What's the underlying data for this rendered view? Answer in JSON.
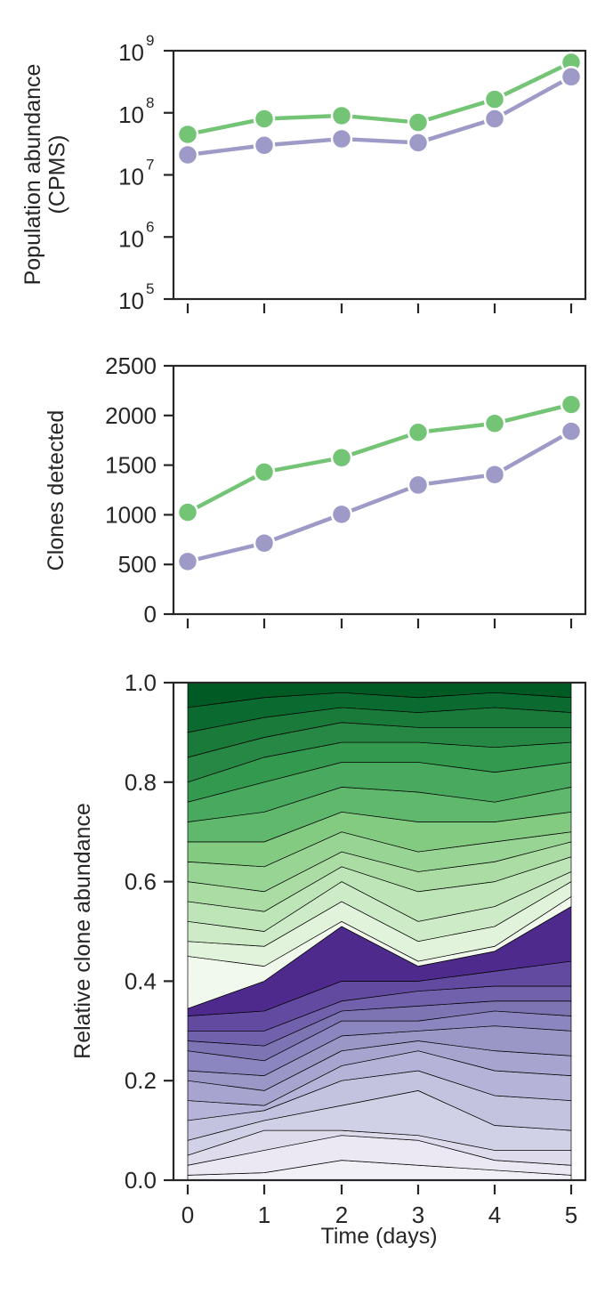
{
  "chart_data": [
    {
      "type": "line",
      "ylabel": "Population abundance\n(CPMS)",
      "yscale": "log",
      "ylim": [
        100000,
        1000000000
      ],
      "yticks": [
        {
          "base": "10",
          "exp": "5"
        },
        {
          "base": "10",
          "exp": "6"
        },
        {
          "base": "10",
          "exp": "7"
        },
        {
          "base": "10",
          "exp": "8"
        },
        {
          "base": "10",
          "exp": "9"
        }
      ],
      "x": [
        0,
        1,
        2,
        3,
        4,
        5
      ],
      "series": [
        {
          "color": "#74c476",
          "values": [
            45000000,
            80000000,
            90000000,
            70000000,
            165000000,
            650000000
          ]
        },
        {
          "color": "#9e9ac8",
          "values": [
            21000000,
            30000000,
            38000000,
            33000000,
            80000000,
            380000000
          ]
        }
      ],
      "grid": false
    },
    {
      "type": "line",
      "ylabel": "Clones detected",
      "ylim": [
        0,
        2500
      ],
      "yticks": [
        "0",
        "500",
        "1000",
        "1500",
        "2000",
        "2500"
      ],
      "x": [
        0,
        1,
        2,
        3,
        4,
        5
      ],
      "series": [
        {
          "color": "#74c476",
          "values": [
            1025,
            1430,
            1575,
            1830,
            1920,
            2110
          ]
        },
        {
          "color": "#9e9ac8",
          "values": [
            530,
            715,
            1005,
            1300,
            1405,
            1840
          ]
        }
      ],
      "grid": false
    },
    {
      "type": "area",
      "stacked": true,
      "ylabel": "Relative clone abundance",
      "xlabel": "Time (days)",
      "ylim": [
        0,
        1
      ],
      "yticks": [
        "0.0",
        "0.2",
        "0.4",
        "0.6",
        "0.8",
        "1.0"
      ],
      "xticks": [
        "0",
        "1",
        "2",
        "3",
        "4",
        "5"
      ],
      "x": [
        0,
        1,
        2,
        3,
        4,
        5
      ],
      "boundaries": [
        [
          0.0,
          0.0,
          0.0,
          0.0,
          0.0,
          0.0
        ],
        [
          0.01,
          0.015,
          0.04,
          0.03,
          0.02,
          0.01
        ],
        [
          0.03,
          0.06,
          0.09,
          0.08,
          0.04,
          0.03
        ],
        [
          0.05,
          0.1,
          0.1,
          0.09,
          0.06,
          0.06
        ],
        [
          0.08,
          0.12,
          0.15,
          0.18,
          0.11,
          0.1
        ],
        [
          0.12,
          0.14,
          0.2,
          0.22,
          0.17,
          0.16
        ],
        [
          0.16,
          0.15,
          0.23,
          0.26,
          0.22,
          0.21
        ],
        [
          0.2,
          0.18,
          0.26,
          0.28,
          0.26,
          0.25
        ],
        [
          0.22,
          0.21,
          0.29,
          0.3,
          0.31,
          0.3
        ],
        [
          0.26,
          0.24,
          0.32,
          0.32,
          0.34,
          0.33
        ],
        [
          0.28,
          0.27,
          0.34,
          0.35,
          0.36,
          0.36
        ],
        [
          0.3,
          0.3,
          0.36,
          0.38,
          0.39,
          0.39
        ],
        [
          0.33,
          0.34,
          0.4,
          0.4,
          0.42,
          0.44
        ],
        [
          0.345,
          0.4,
          0.51,
          0.43,
          0.46,
          0.55
        ],
        [
          0.45,
          0.43,
          0.52,
          0.44,
          0.47,
          0.57
        ],
        [
          0.48,
          0.47,
          0.56,
          0.48,
          0.51,
          0.6
        ],
        [
          0.52,
          0.5,
          0.6,
          0.52,
          0.55,
          0.62
        ],
        [
          0.56,
          0.54,
          0.63,
          0.58,
          0.6,
          0.65
        ],
        [
          0.6,
          0.58,
          0.66,
          0.62,
          0.64,
          0.68
        ],
        [
          0.64,
          0.63,
          0.7,
          0.66,
          0.68,
          0.7
        ],
        [
          0.68,
          0.68,
          0.74,
          0.72,
          0.72,
          0.74
        ],
        [
          0.72,
          0.74,
          0.79,
          0.78,
          0.76,
          0.79
        ],
        [
          0.76,
          0.8,
          0.84,
          0.84,
          0.82,
          0.84
        ],
        [
          0.8,
          0.85,
          0.88,
          0.88,
          0.87,
          0.88
        ],
        [
          0.85,
          0.89,
          0.92,
          0.91,
          0.91,
          0.91
        ],
        [
          0.9,
          0.93,
          0.95,
          0.94,
          0.95,
          0.94
        ],
        [
          0.95,
          0.97,
          0.98,
          0.97,
          0.98,
          0.97
        ],
        [
          1.0,
          1.0,
          1.0,
          1.0,
          1.0,
          1.0
        ]
      ],
      "band_colors": [
        "#f2f0f7",
        "#ebe8f3",
        "#dedcec",
        "#d0d0e6",
        "#c3c3df",
        "#b5b4d8",
        "#a7a4cf",
        "#9a97c6",
        "#8b86bf",
        "#7d74b4",
        "#7160ab",
        "#634aa1",
        "#4e2a8c",
        "#f0f9ec",
        "#e1f3da",
        "#cdebc6",
        "#bee5b8",
        "#aadca3",
        "#98d594",
        "#84cb82",
        "#60b86c",
        "#49a95f",
        "#33994f",
        "#268844",
        "#1a7a3a",
        "#0b6a30",
        "#005a24"
      ]
    }
  ]
}
